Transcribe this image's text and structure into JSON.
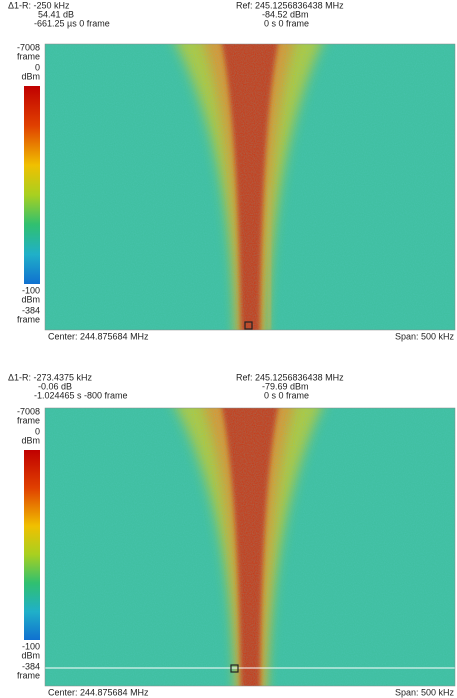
{
  "panels": [
    {
      "marker": {
        "delta": "Δ1-R: -250 kHz",
        "level": "54.41 dB",
        "time": "-661.25 µs  0 frame"
      },
      "reference": {
        "frequency": "Ref: 245.1256836438 MHz",
        "level": "-84.52 dBm",
        "time": "0 s  0 frame"
      },
      "scale": {
        "top_frame": "-7008",
        "top_frame_unit": "frame",
        "top_level": "0",
        "top_level_unit": "dBm",
        "bottom_level": "-100",
        "bottom_level_unit": "dBm",
        "bottom_frame": "-384",
        "bottom_frame_unit": "frame"
      },
      "center": "Center: 244.875684 MHz",
      "span": "Span: 500 kHz"
    },
    {
      "marker": {
        "delta": "Δ1-R: -273.4375 kHz",
        "level": "-0.06 dB",
        "time": "-1.024465 s  -800 frame"
      },
      "reference": {
        "frequency": "Ref: 245.1256836438 MHz",
        "level": "-79.69 dBm",
        "time": "0 s  0 frame"
      },
      "scale": {
        "top_frame": "-7008",
        "top_frame_unit": "frame",
        "top_level": "0",
        "top_level_unit": "dBm",
        "bottom_level": "-100",
        "bottom_level_unit": "dBm",
        "bottom_frame": "-384",
        "bottom_frame_unit": "frame"
      },
      "center": "Center: 244.875684 MHz",
      "span": "Span: 500 kHz"
    }
  ]
}
